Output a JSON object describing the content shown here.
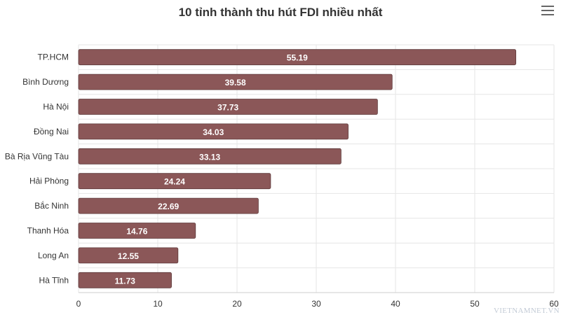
{
  "chart_data": {
    "type": "bar",
    "orientation": "horizontal",
    "title": "10 tỉnh thành thu hút FDI nhiều nhất",
    "categories": [
      "TP.HCM",
      "Bình Dương",
      "Hà Nội",
      "Đồng Nai",
      "Bà Rịa Vũng Tàu",
      "Hải Phòng",
      "Bắc Ninh",
      "Thanh Hóa",
      "Long An",
      "Hà Tĩnh"
    ],
    "values": [
      55.19,
      39.58,
      37.73,
      34.03,
      33.13,
      24.24,
      22.69,
      14.76,
      12.55,
      11.73
    ],
    "xlim": [
      0,
      60
    ],
    "xticks": [
      0,
      10,
      20,
      30,
      40,
      50,
      60
    ],
    "xlabel": "",
    "ylabel": "",
    "grid": true,
    "bar_color": "#8b5758",
    "data_labels": true
  },
  "menu_icon": "hamburger-menu-icon",
  "watermark": "VIETNAMNET.VN"
}
